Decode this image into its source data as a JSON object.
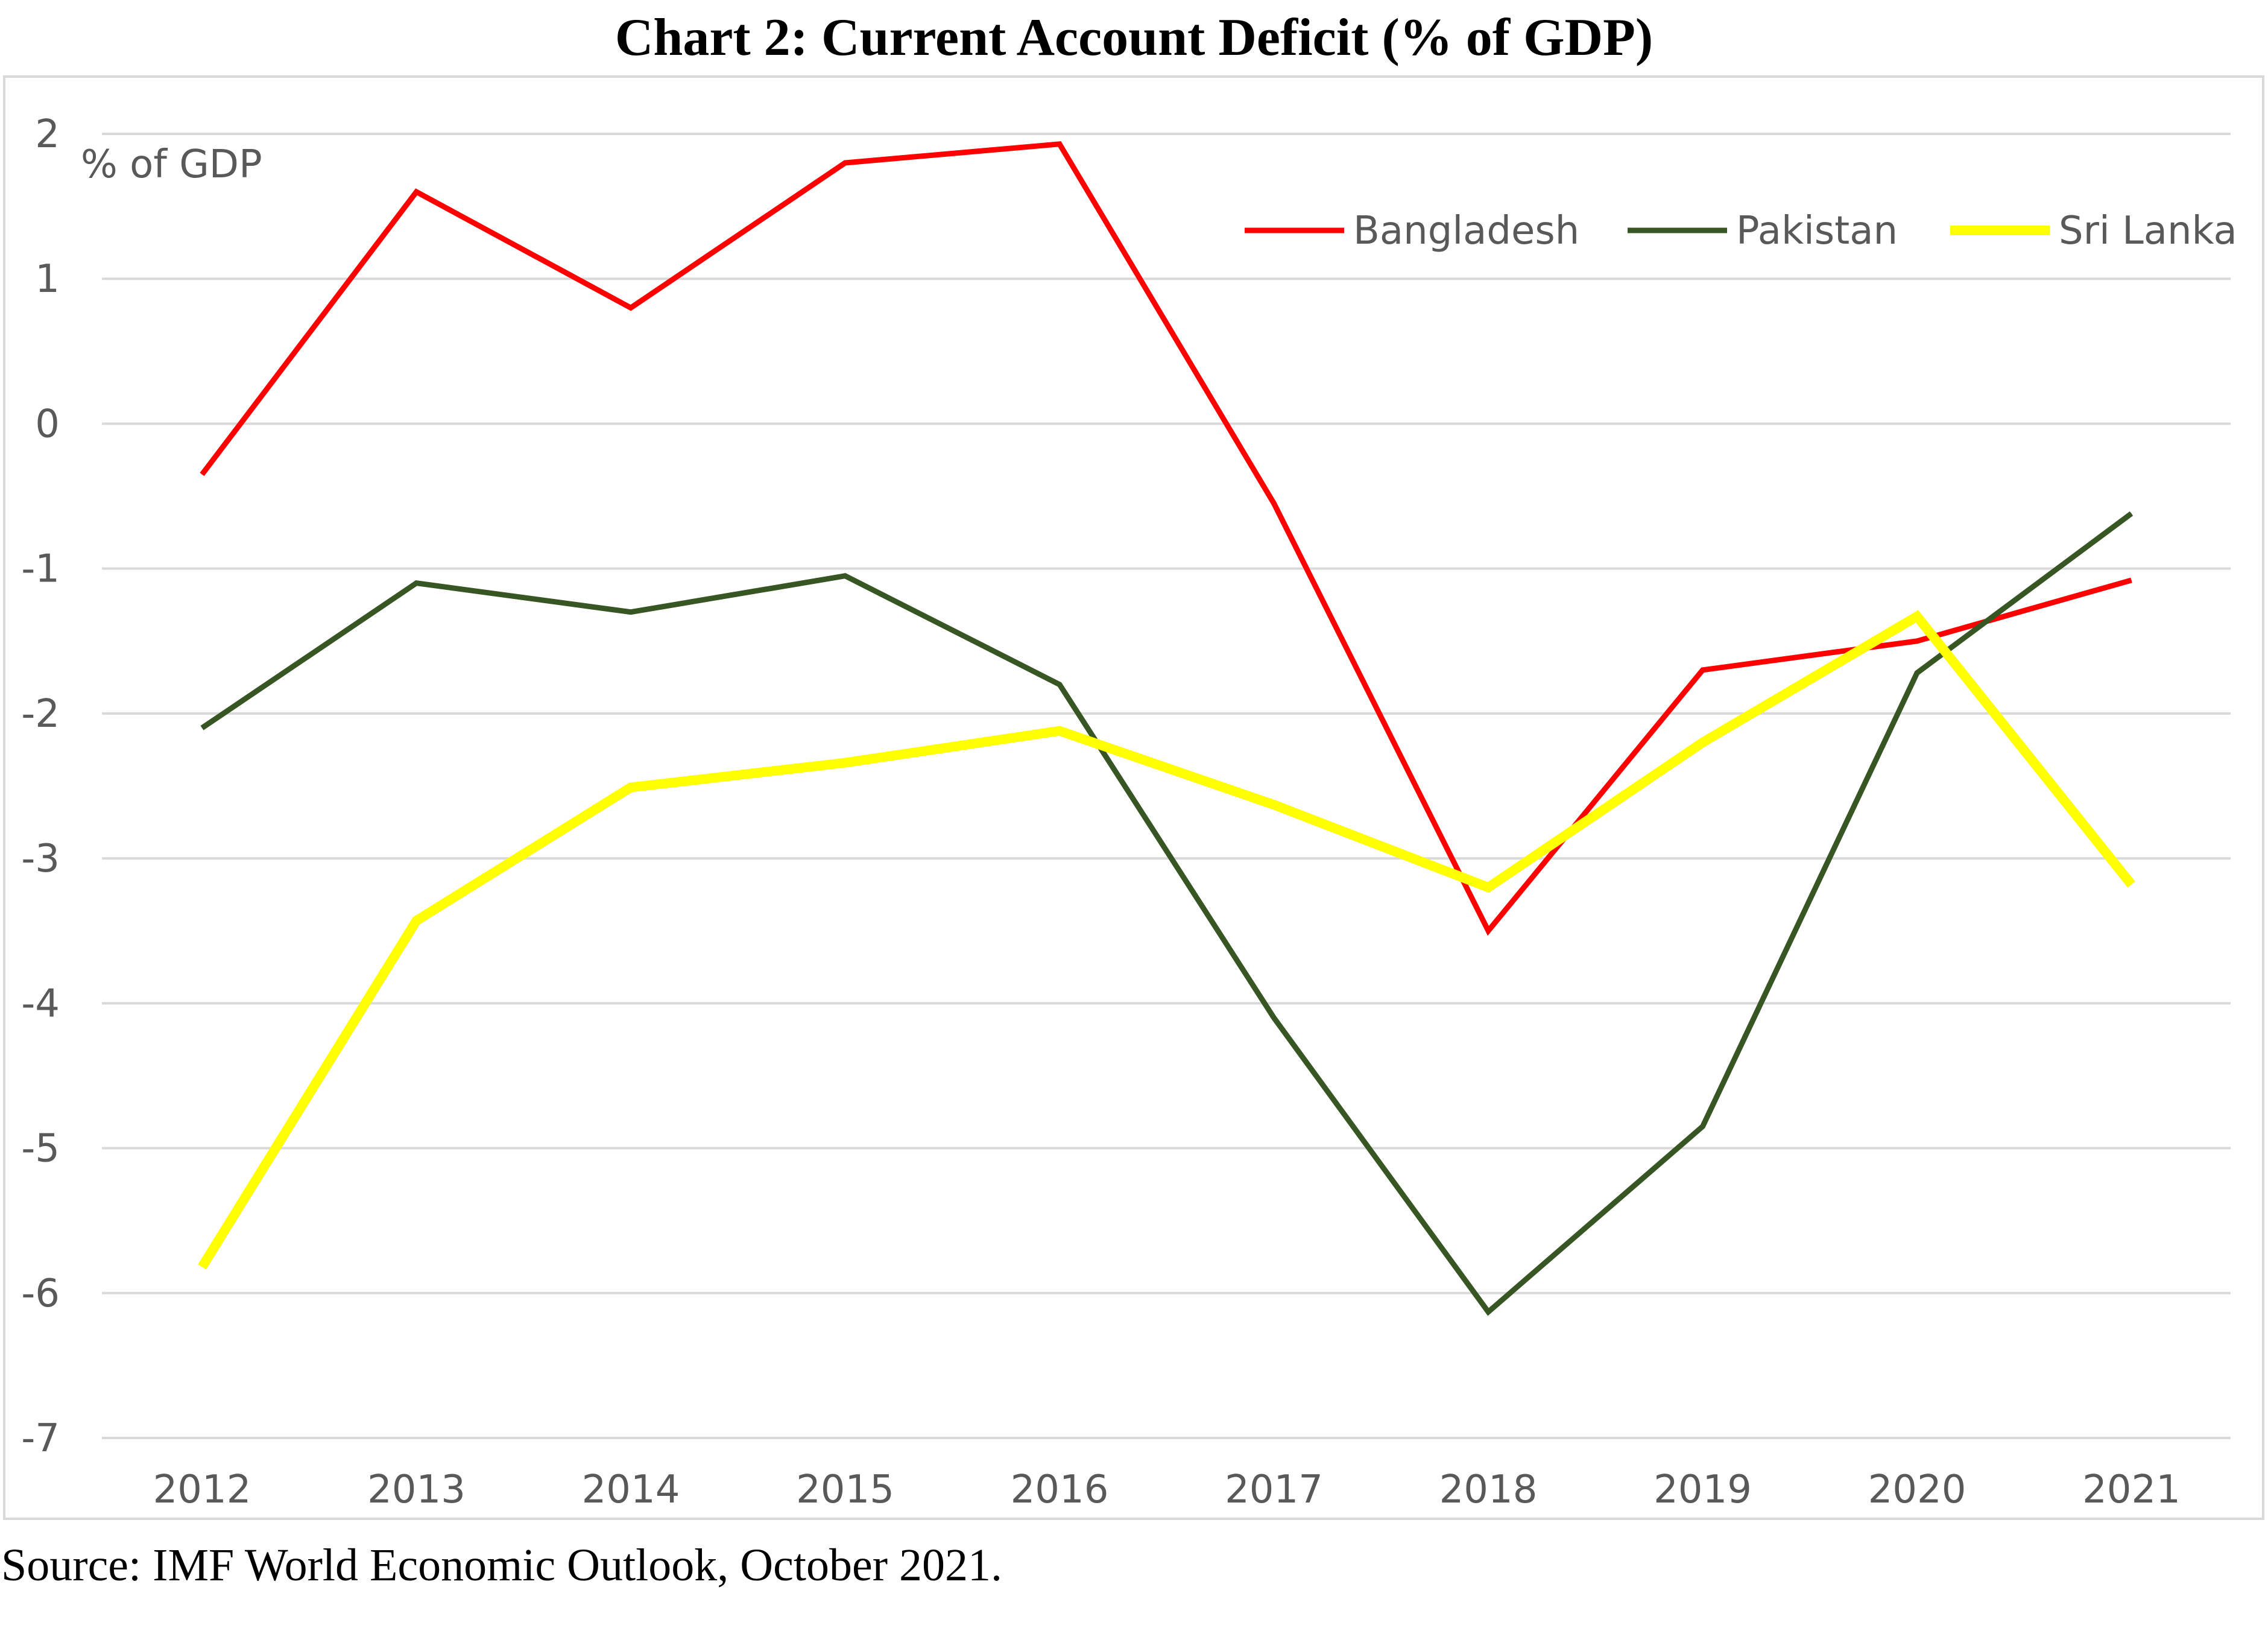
{
  "title": "Chart 2: Current Account Deficit (% of GDP)",
  "source": "Source: IMF World Economic Outlook, October 2021.",
  "chart_data": {
    "type": "line",
    "title": "Chart 2: Current Account Deficit (% of GDP)",
    "unit_label": "% of GDP",
    "xlabel": "",
    "ylabel": "",
    "categories": [
      "2012",
      "2013",
      "2014",
      "2015",
      "2016",
      "2017",
      "2018",
      "2019",
      "2020",
      "2021"
    ],
    "ylim": [
      -7,
      2
    ],
    "yticks": [
      2,
      1,
      0,
      -1,
      -2,
      -3,
      -4,
      -5,
      -6,
      -7
    ],
    "grid": true,
    "legend_position": "top-right",
    "series": [
      {
        "name": "Bangladesh",
        "color": "#ff0000",
        "values": [
          -0.35,
          1.6,
          0.8,
          1.8,
          1.93,
          -0.55,
          -3.5,
          -1.7,
          -1.5,
          -1.08
        ]
      },
      {
        "name": "Pakistan",
        "color": "#375623",
        "values": [
          -2.1,
          -1.1,
          -1.3,
          -1.05,
          -1.8,
          -4.1,
          -6.13,
          -4.85,
          -1.72,
          -0.62
        ]
      },
      {
        "name": "Sri Lanka",
        "color": "#ffff00",
        "values": [
          -5.82,
          -3.43,
          -2.51,
          -2.34,
          -2.12,
          -2.63,
          -3.2,
          -2.2,
          -1.33,
          -3.18
        ]
      }
    ]
  }
}
